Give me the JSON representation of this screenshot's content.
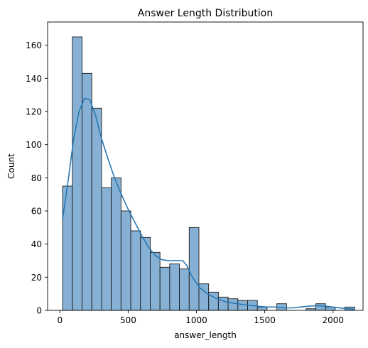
{
  "chart_data": {
    "type": "histogram",
    "title": "Answer Length Distribution",
    "xlabel": "answer_length",
    "ylabel": "Count",
    "xlim": [
      -90,
      2220
    ],
    "ylim": [
      0,
      174
    ],
    "xticks": [
      0,
      500,
      1000,
      1500,
      2000
    ],
    "yticks": [
      0,
      20,
      40,
      60,
      80,
      100,
      120,
      140,
      160
    ],
    "bin_start": 20,
    "bin_width": 71.3,
    "counts": [
      75,
      165,
      143,
      122,
      74,
      80,
      60,
      48,
      44,
      35,
      26,
      28,
      25,
      50,
      16,
      11,
      8,
      7,
      6,
      6,
      2,
      0,
      4,
      0,
      0,
      1,
      4,
      2,
      0,
      2
    ],
    "kde": [
      [
        20,
        55
      ],
      [
        60,
        78
      ],
      [
        100,
        103
      ],
      [
        140,
        120
      ],
      [
        180,
        128
      ],
      [
        220,
        127
      ],
      [
        260,
        118
      ],
      [
        300,
        105
      ],
      [
        350,
        92
      ],
      [
        400,
        80
      ],
      [
        450,
        70
      ],
      [
        500,
        61
      ],
      [
        550,
        53
      ],
      [
        600,
        45
      ],
      [
        650,
        38
      ],
      [
        700,
        33
      ],
      [
        750,
        30.5
      ],
      [
        800,
        30
      ],
      [
        850,
        30
      ],
      [
        900,
        30
      ],
      [
        930,
        27
      ],
      [
        970,
        20
      ],
      [
        1020,
        14
      ],
      [
        1080,
        10
      ],
      [
        1150,
        7
      ],
      [
        1220,
        5
      ],
      [
        1300,
        4
      ],
      [
        1380,
        3
      ],
      [
        1450,
        2.5
      ],
      [
        1520,
        2
      ],
      [
        1580,
        2
      ],
      [
        1650,
        1.5
      ],
      [
        1700,
        1.5
      ],
      [
        1760,
        2
      ],
      [
        1820,
        2.5
      ],
      [
        1880,
        2.8
      ],
      [
        1950,
        2.5
      ],
      [
        2020,
        1.8
      ],
      [
        2100,
        1
      ],
      [
        2160,
        0.6
      ]
    ],
    "colors": {
      "bar_fill": "#86b1d4",
      "bar_edge": "#1a1a1a",
      "kde_line": "#2878b5",
      "axis": "#000000"
    },
    "grid": false,
    "legend": "none"
  }
}
